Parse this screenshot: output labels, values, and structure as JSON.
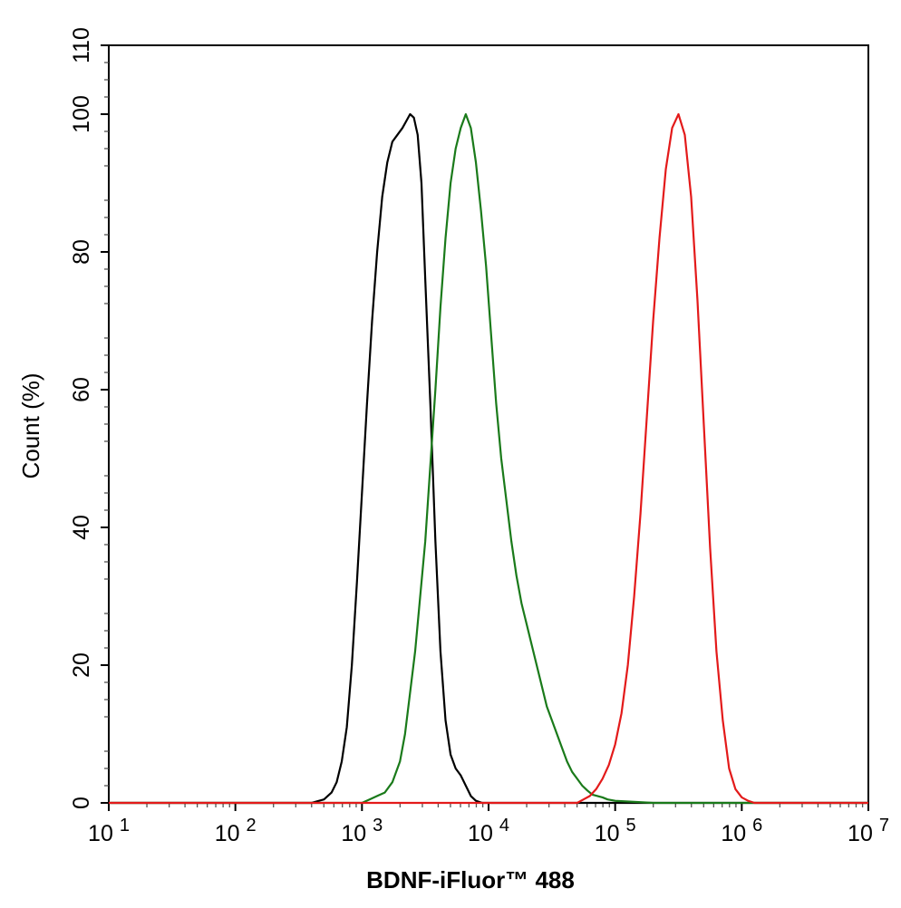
{
  "chart_data": {
    "type": "line",
    "xlabel": "BDNF-iFluor™ 488",
    "ylabel": "Count  (%)",
    "x_scale": "log",
    "xlim": [
      10,
      10000000
    ],
    "ylim": [
      0,
      110
    ],
    "x_ticks": [
      {
        "value": 10,
        "base": "10",
        "exp": "1"
      },
      {
        "value": 100,
        "base": "10",
        "exp": "2"
      },
      {
        "value": 1000,
        "base": "10",
        "exp": "3"
      },
      {
        "value": 10000,
        "base": "10",
        "exp": "4"
      },
      {
        "value": 100000,
        "base": "10",
        "exp": "5"
      },
      {
        "value": 1000000,
        "base": "10",
        "exp": "6"
      },
      {
        "value": 10000000,
        "base": "10",
        "exp": "7"
      }
    ],
    "y_ticks": [
      0,
      20,
      40,
      60,
      80,
      100,
      110
    ],
    "grid": false,
    "legend": "none",
    "series": [
      {
        "color": "#000000",
        "points": [
          [
            10,
            0
          ],
          [
            398,
            0
          ],
          [
            501,
            0.5
          ],
          [
            575,
            1.5
          ],
          [
            631,
            3
          ],
          [
            692,
            6
          ],
          [
            759,
            11
          ],
          [
            832,
            20
          ],
          [
            912,
            32
          ],
          [
            1000,
            45
          ],
          [
            1096,
            58
          ],
          [
            1202,
            70
          ],
          [
            1318,
            80
          ],
          [
            1445,
            88
          ],
          [
            1585,
            93
          ],
          [
            1738,
            96
          ],
          [
            1905,
            97
          ],
          [
            2089,
            98
          ],
          [
            2239,
            99
          ],
          [
            2399,
            100
          ],
          [
            2570,
            99.5
          ],
          [
            2754,
            97
          ],
          [
            2951,
            90
          ],
          [
            3162,
            76
          ],
          [
            3467,
            58
          ],
          [
            3802,
            38
          ],
          [
            4169,
            22
          ],
          [
            4571,
            12
          ],
          [
            5012,
            7
          ],
          [
            5495,
            5
          ],
          [
            6026,
            4
          ],
          [
            6607,
            2.5
          ],
          [
            7244,
            1
          ],
          [
            7943,
            0.3
          ],
          [
            8913,
            0
          ],
          [
            10000000,
            0
          ]
        ]
      },
      {
        "color": "#1a7a1a",
        "points": [
          [
            10,
            0
          ],
          [
            1000,
            0
          ],
          [
            1148,
            0.5
          ],
          [
            1318,
            1
          ],
          [
            1514,
            1.5
          ],
          [
            1738,
            3
          ],
          [
            1995,
            6
          ],
          [
            2188,
            10
          ],
          [
            2399,
            16
          ],
          [
            2630,
            22
          ],
          [
            2884,
            30
          ],
          [
            3162,
            38
          ],
          [
            3467,
            49
          ],
          [
            3802,
            60
          ],
          [
            4169,
            72
          ],
          [
            4571,
            82
          ],
          [
            5012,
            90
          ],
          [
            5495,
            95
          ],
          [
            6026,
            98
          ],
          [
            6607,
            100
          ],
          [
            7244,
            98
          ],
          [
            7943,
            93
          ],
          [
            8710,
            86
          ],
          [
            9550,
            78
          ],
          [
            10471,
            68
          ],
          [
            11482,
            58
          ],
          [
            12589,
            50
          ],
          [
            13804,
            44
          ],
          [
            15136,
            38
          ],
          [
            16596,
            33
          ],
          [
            18197,
            29
          ],
          [
            19953,
            26
          ],
          [
            21878,
            23
          ],
          [
            23988,
            20
          ],
          [
            26303,
            17
          ],
          [
            28840,
            14
          ],
          [
            31623,
            12
          ],
          [
            34674,
            10
          ],
          [
            38019,
            8
          ],
          [
            41687,
            6
          ],
          [
            45709,
            4.5
          ],
          [
            50119,
            3.5
          ],
          [
            54954,
            2.5
          ],
          [
            60256,
            1.8
          ],
          [
            66069,
            1.2
          ],
          [
            72444,
            1
          ],
          [
            79433,
            0.8
          ],
          [
            87096,
            0.5
          ],
          [
            100000,
            0.3
          ],
          [
            125893,
            0.2
          ],
          [
            158489,
            0.1
          ],
          [
            199526,
            0
          ],
          [
            10000000,
            0
          ]
        ]
      },
      {
        "color": "#e31a1a",
        "points": [
          [
            10,
            0
          ],
          [
            50119,
            0
          ],
          [
            56234,
            0.5
          ],
          [
            63096,
            1
          ],
          [
            70795,
            2
          ],
          [
            79433,
            3.5
          ],
          [
            89125,
            5.5
          ],
          [
            100000,
            8.5
          ],
          [
            112202,
            13
          ],
          [
            125893,
            20
          ],
          [
            141254,
            30
          ],
          [
            158489,
            42
          ],
          [
            177828,
            56
          ],
          [
            199526,
            70
          ],
          [
            223872,
            82
          ],
          [
            251189,
            92
          ],
          [
            281838,
            98
          ],
          [
            316228,
            100
          ],
          [
            354813,
            97
          ],
          [
            398107,
            88
          ],
          [
            446684,
            73
          ],
          [
            501187,
            55
          ],
          [
            562341,
            37
          ],
          [
            630957,
            22
          ],
          [
            707946,
            12
          ],
          [
            794328,
            5
          ],
          [
            891251,
            2
          ],
          [
            1000000,
            0.8
          ],
          [
            1122018,
            0.3
          ],
          [
            1258925,
            0
          ],
          [
            10000000,
            0
          ]
        ]
      }
    ]
  }
}
